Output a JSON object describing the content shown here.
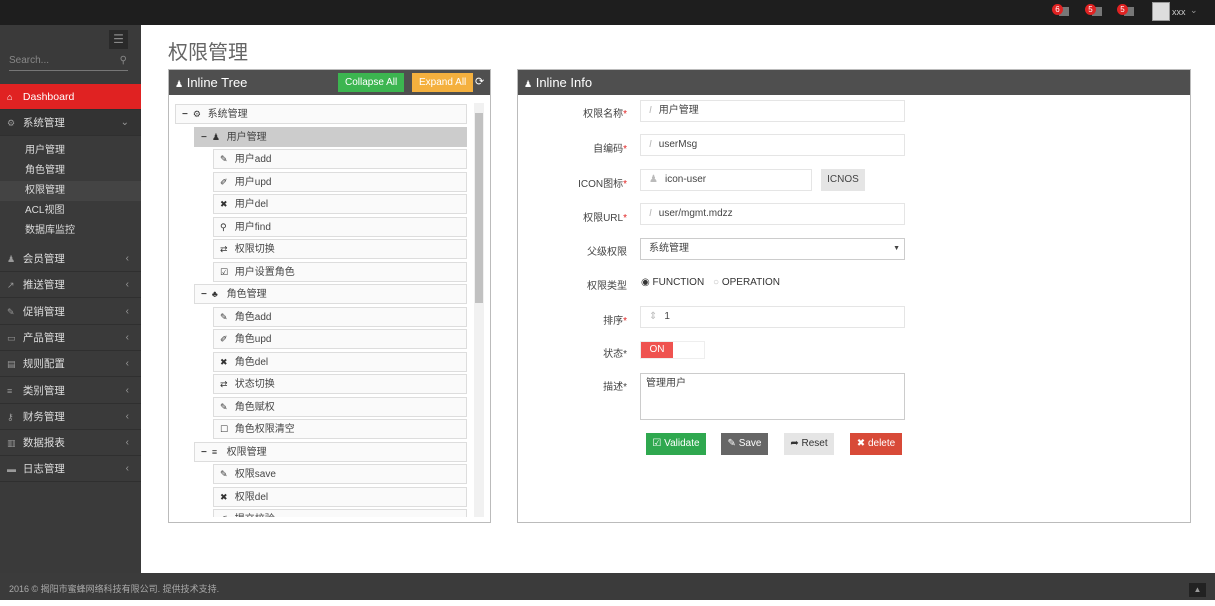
{
  "topbar": {
    "notifications": [
      {
        "count": "6",
        "icon": "bell-icon"
      },
      {
        "count": "5",
        "icon": "inbox-icon"
      },
      {
        "count": "5",
        "icon": "calendar-icon"
      }
    ],
    "user": "xxx"
  },
  "sidebar": {
    "search_placeholder": "Search...",
    "items": [
      {
        "label": "Dashboard",
        "icon": "home-icon",
        "active": true
      },
      {
        "label": "系统管理",
        "icon": "cogs-icon",
        "open": true,
        "children": [
          "用户管理",
          "角色管理",
          "权限管理",
          "ACL视图",
          "数据库监控"
        ],
        "current": "权限管理"
      },
      {
        "label": "会员管理",
        "icon": "user-icon"
      },
      {
        "label": "推送管理",
        "icon": "share-icon"
      },
      {
        "label": "促销管理",
        "icon": "pencil-icon"
      },
      {
        "label": "产品管理",
        "icon": "briefcase-icon"
      },
      {
        "label": "规则配置",
        "icon": "list-alt-icon"
      },
      {
        "label": "类别管理",
        "icon": "list-icon"
      },
      {
        "label": "财务管理",
        "icon": "key-icon"
      },
      {
        "label": "数据报表",
        "icon": "bar-chart-icon"
      },
      {
        "label": "日志管理",
        "icon": "credit-card-icon"
      }
    ]
  },
  "page": {
    "title": "权限管理"
  },
  "tree_panel": {
    "title": "Inline Tree",
    "collapse_all": "Collapse All",
    "expand_all": "Expand All",
    "nodes": [
      {
        "label": "系统管理",
        "icon": "cogs-icon",
        "level": 0,
        "toggle": "−"
      },
      {
        "label": "用户管理",
        "icon": "user-icon",
        "level": 1,
        "toggle": "−",
        "selected": true
      },
      {
        "label": "用户add",
        "icon": "pencil-icon",
        "level": 2
      },
      {
        "label": "用户upd",
        "icon": "edit-icon",
        "level": 2
      },
      {
        "label": "用户del",
        "icon": "times-icon",
        "level": 2
      },
      {
        "label": "用户find",
        "icon": "search-icon",
        "level": 2
      },
      {
        "label": "权限切换",
        "icon": "retweet-icon",
        "level": 2
      },
      {
        "label": "用户设置角色",
        "icon": "check-square-icon",
        "level": 2
      },
      {
        "label": "角色管理",
        "icon": "sitemap-icon",
        "level": 1,
        "toggle": "−"
      },
      {
        "label": "角色add",
        "icon": "pencil-icon",
        "level": 2
      },
      {
        "label": "角色upd",
        "icon": "edit-icon",
        "level": 2
      },
      {
        "label": "角色del",
        "icon": "times-icon",
        "level": 2
      },
      {
        "label": "状态切换",
        "icon": "retweet-icon",
        "level": 2
      },
      {
        "label": "角色赋权",
        "icon": "pencil-icon",
        "level": 2
      },
      {
        "label": "角色权限清空",
        "icon": "square-icon",
        "level": 2
      },
      {
        "label": "权限管理",
        "icon": "list-icon",
        "level": 1,
        "toggle": "−"
      },
      {
        "label": "权限save",
        "icon": "pencil-icon",
        "level": 2
      },
      {
        "label": "权限del",
        "icon": "times-icon",
        "level": 2
      },
      {
        "label": "提交校验",
        "icon": "edit-icon",
        "level": 2
      }
    ]
  },
  "info_panel": {
    "title": "Inline Info",
    "fields": {
      "name": {
        "label": "权限名称",
        "value": "用户管理"
      },
      "code": {
        "label": "自编码",
        "value": "userMsg"
      },
      "icon": {
        "label": "ICON图标",
        "value": "icon-user",
        "button": "ICNOS"
      },
      "url": {
        "label": "权限URL",
        "value": "user/mgmt.mdzz"
      },
      "parent": {
        "label": "父级权限",
        "value": "系统管理"
      },
      "type": {
        "label": "权限类型",
        "options": [
          "FUNCTION",
          "OPERATION"
        ],
        "selected": "FUNCTION"
      },
      "order": {
        "label": "排序",
        "value": "1"
      },
      "status": {
        "label": "状态",
        "value": "ON"
      },
      "desc": {
        "label": "描述",
        "value": "管理用户"
      }
    },
    "buttons": {
      "validate": "Validate",
      "save": "Save",
      "reset": "Reset",
      "delete": "delete"
    },
    "colors": {
      "validate": "#2fa84f",
      "save": "#666666",
      "reset": "#e5e5e5",
      "delete": "#d84a38",
      "toggle_on": "#ef5350"
    }
  },
  "footer": {
    "text": "2016 © 揭阳市蜜蜂网络科技有限公司. 提供技术支持."
  }
}
